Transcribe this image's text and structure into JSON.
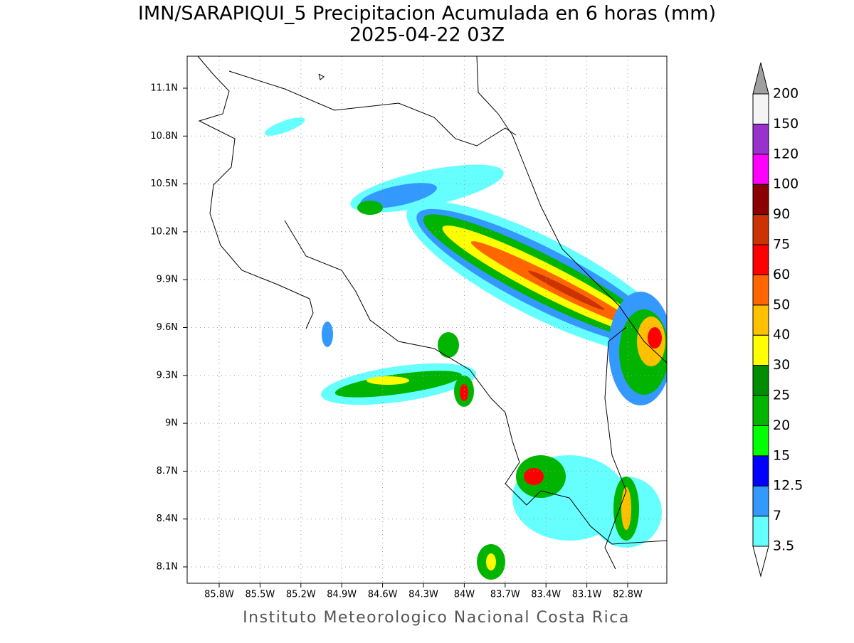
{
  "title": "IMN/SARAPIQUI_5 Precipitacion Acumulada en 6 horas (mm)",
  "subtitle": "2025-04-22 03Z",
  "footer": "Instituto Meteorologico Nacional Costa Rica",
  "map": {
    "lon_ticks": [
      {
        "value": -85.8,
        "label": "85.8W"
      },
      {
        "value": -85.5,
        "label": "85.5W"
      },
      {
        "value": -85.2,
        "label": "85.2W"
      },
      {
        "value": -84.9,
        "label": "84.9W"
      },
      {
        "value": -84.6,
        "label": "84.6W"
      },
      {
        "value": -84.3,
        "label": "84.3W"
      },
      {
        "value": -84.0,
        "label": "84W"
      },
      {
        "value": -83.7,
        "label": "83.7W"
      },
      {
        "value": -83.4,
        "label": "83.4W"
      },
      {
        "value": -83.1,
        "label": "83.1W"
      },
      {
        "value": -82.8,
        "label": "82.8W"
      }
    ],
    "lat_ticks": [
      {
        "value": 11.1,
        "label": "11.1N"
      },
      {
        "value": 10.8,
        "label": "10.8N"
      },
      {
        "value": 10.5,
        "label": "10.5N"
      },
      {
        "value": 10.2,
        "label": "10.2N"
      },
      {
        "value": 9.9,
        "label": "9.9N"
      },
      {
        "value": 9.6,
        "label": "9.6N"
      },
      {
        "value": 9.3,
        "label": "9.3N"
      },
      {
        "value": 9.0,
        "label": "9N"
      },
      {
        "value": 8.7,
        "label": "8.7N"
      },
      {
        "value": 8.4,
        "label": "8.4N"
      },
      {
        "value": 8.1,
        "label": "8.1N"
      }
    ],
    "colorbar": {
      "levels": [
        3.5,
        7,
        12.5,
        15,
        20,
        25,
        30,
        40,
        50,
        60,
        75,
        90,
        100,
        120,
        150,
        200
      ],
      "colors": [
        "#66ffff",
        "#3399ff",
        "#0000ff",
        "#00ff00",
        "#00b400",
        "#008c00",
        "#ffff00",
        "#ffc000",
        "#ff6600",
        "#ff0000",
        "#cc3300",
        "#8b0000",
        "#ff00ff",
        "#9932cc",
        "#f4f4f4"
      ],
      "over_color": "#a0a0a0",
      "under_color": "#ffffff"
    }
  }
}
